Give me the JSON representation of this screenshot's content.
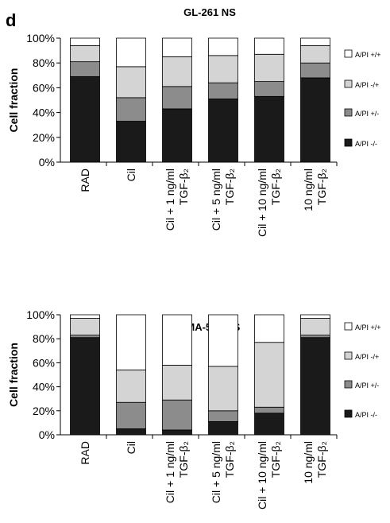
{
  "panel_label": "d",
  "chart_data": [
    {
      "type": "bar",
      "stacked": true,
      "title": "GL-261 NS",
      "ylabel": "Cell fraction",
      "ylim": [
        0,
        100
      ],
      "yticks": [
        "0%",
        "20%",
        "40%",
        "60%",
        "80%",
        "100%"
      ],
      "categories": [
        [
          "RAD"
        ],
        [
          "Cil"
        ],
        [
          "Cil + 1 ng/ml",
          "TGF-β₂"
        ],
        [
          "Cil + 5 ng/ml",
          "TGF-β₂"
        ],
        [
          "Cil + 10 ng/ml",
          "TGF-β₂"
        ],
        [
          "10 ng/ml",
          "TGF-β₂"
        ]
      ],
      "series": [
        {
          "name": "A/PI -/-",
          "color": "#1a1a1a",
          "values": [
            69,
            33,
            43,
            51,
            53,
            68
          ]
        },
        {
          "name": "A/PI +/-",
          "color": "#8c8c8c",
          "values": [
            12,
            19,
            18,
            13,
            12,
            12
          ]
        },
        {
          "name": "A/PI -/+",
          "color": "#d4d4d4",
          "values": [
            13,
            25,
            24,
            22,
            22,
            14
          ]
        },
        {
          "name": "A/PI +/+",
          "color": "#ffffff",
          "values": [
            6,
            23,
            15,
            14,
            13,
            6
          ]
        }
      ],
      "legend_position": "right"
    },
    {
      "type": "bar",
      "stacked": true,
      "title": "SMA-560 NS",
      "ylabel": "Cell fraction",
      "ylim": [
        0,
        100
      ],
      "yticks": [
        "0%",
        "20%",
        "40%",
        "60%",
        "80%",
        "100%"
      ],
      "categories": [
        [
          "RAD"
        ],
        [
          "Cil"
        ],
        [
          "Cil + 1 ng/ml",
          "TGF-β₂"
        ],
        [
          "Cil + 5 ng/ml",
          "TGF-β₂"
        ],
        [
          "Cil + 10 ng/ml",
          "TGF-β₂"
        ],
        [
          "10 ng/ml",
          "TGF-β₂"
        ]
      ],
      "series": [
        {
          "name": "A/PI -/-",
          "color": "#1a1a1a",
          "values": [
            81,
            5,
            4,
            11,
            18,
            81
          ]
        },
        {
          "name": "A/PI +/-",
          "color": "#8c8c8c",
          "values": [
            2,
            22,
            25,
            9,
            5,
            2
          ]
        },
        {
          "name": "A/PI -/+",
          "color": "#d4d4d4",
          "values": [
            14,
            27,
            29,
            37,
            54,
            14
          ]
        },
        {
          "name": "A/PI +/+",
          "color": "#ffffff",
          "values": [
            3,
            46,
            42,
            43,
            23,
            3
          ]
        }
      ],
      "legend_position": "right"
    }
  ]
}
